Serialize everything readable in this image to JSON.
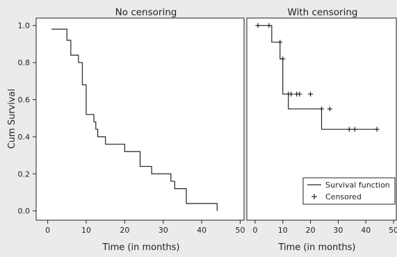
{
  "colors": {
    "background": "#ebebeb",
    "plot_bg": "#ffffff",
    "line": "#222222"
  },
  "chart_data": [
    {
      "type": "line",
      "title": "No censoring",
      "xlabel": "Time (in months)",
      "ylabel": "Cum Survival",
      "xlim": [
        -3,
        51
      ],
      "ylim": [
        -0.05,
        1.04
      ],
      "xticks": [
        0,
        10,
        20,
        30,
        40,
        50
      ],
      "yticks": [
        0.0,
        0.2,
        0.4,
        0.6,
        0.8,
        1.0
      ],
      "xtick_labels": [
        "0",
        "10",
        "20",
        "30",
        "40",
        "50"
      ],
      "ytick_labels": [
        "0.0",
        "0.2",
        "0.4",
        "0.6",
        "0.8",
        "1.0"
      ],
      "grid": false,
      "series": [
        {
          "step": true,
          "x": [
            1,
            5,
            6,
            8,
            9,
            10,
            12,
            12.5,
            13,
            15,
            16,
            20,
            24,
            27,
            32,
            33,
            36,
            44
          ],
          "y": [
            0.98,
            0.92,
            0.84,
            0.8,
            0.68,
            0.52,
            0.48,
            0.44,
            0.4,
            0.36,
            0.36,
            0.32,
            0.24,
            0.2,
            0.16,
            0.12,
            0.04,
            0.0
          ]
        }
      ]
    },
    {
      "type": "line",
      "title": "With censoring",
      "xlabel": "Time (in months)",
      "ylabel": "",
      "xlim": [
        -3,
        51
      ],
      "ylim": [
        -0.05,
        1.04
      ],
      "xticks": [
        0,
        10,
        20,
        30,
        40,
        50
      ],
      "xtick_labels": [
        "0",
        "10",
        "20",
        "30",
        "40",
        "50"
      ],
      "grid": false,
      "series": [
        {
          "name": "Survival function",
          "step": true,
          "x": [
            1,
            6,
            9,
            10,
            12,
            24,
            32,
            44
          ],
          "y": [
            1.0,
            0.91,
            0.82,
            0.63,
            0.55,
            0.44,
            0.44,
            0.44
          ]
        },
        {
          "name": "Censored",
          "marker": "+",
          "x": [
            1,
            5,
            9,
            10,
            12,
            13,
            15,
            16,
            20,
            24,
            27,
            34,
            36,
            44
          ],
          "y": [
            1.0,
            1.0,
            0.91,
            0.82,
            0.63,
            0.63,
            0.63,
            0.63,
            0.63,
            0.55,
            0.55,
            0.44,
            0.44,
            0.44
          ]
        }
      ],
      "legend": {
        "position": "bottom-right",
        "entries": [
          "Survival function",
          "Censored"
        ]
      }
    }
  ]
}
